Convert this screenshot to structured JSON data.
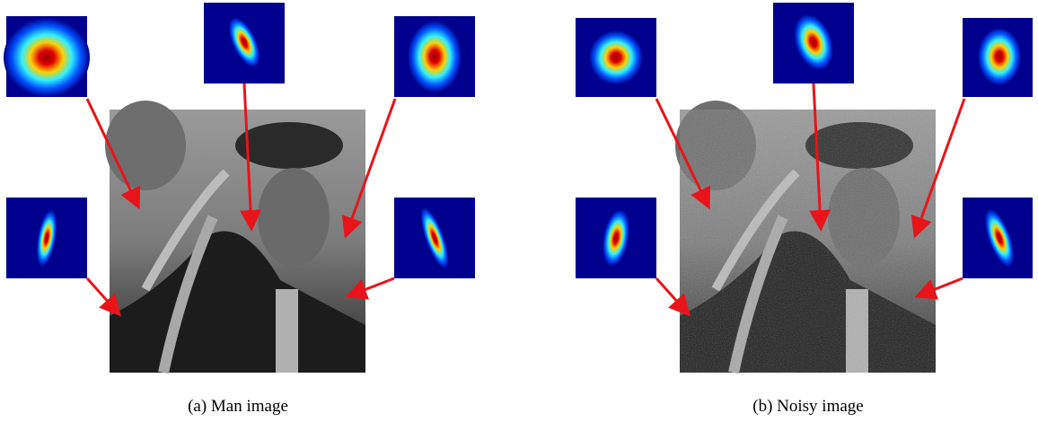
{
  "figure": {
    "panels": [
      {
        "caption": "(a) Man image"
      },
      {
        "caption": "(b) Noisy image"
      }
    ]
  }
}
